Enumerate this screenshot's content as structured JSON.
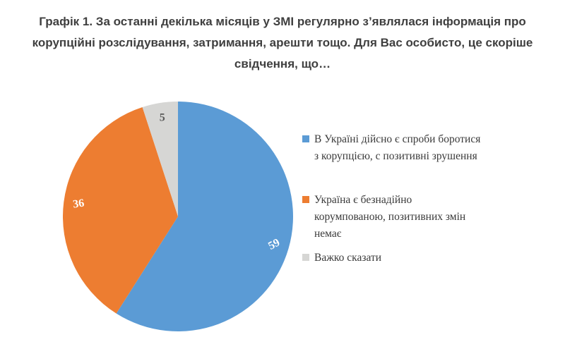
{
  "title": {
    "text": "Графік 1. За останні декілька місяців у ЗМІ регулярно з’являлася інформація про\nкорупційні розслідування, затримання, арешти тощо. Для Вас особисто, це скоріше\nсвідчення, що…",
    "color": "#3F3F3F"
  },
  "chart_data": {
    "type": "pie",
    "title": "Графік 1. За останні декілька місяців у ЗМІ регулярно з’являлася інформація про корупційні розслідування, затримання, арешти тощо. Для Вас особисто, це скоріше свідчення, що…",
    "categories": [
      "В Україні дійсно є спроби боротися з корупцією, с позитивні зрушення",
      "Україна є безнадійно корумпованою, позитивних змін немає",
      "Важко сказати"
    ],
    "values": [
      59,
      36,
      5
    ],
    "colors": [
      "#5B9BD5",
      "#ED7D31",
      "#D6D6D4"
    ],
    "data_labels": [
      "59",
      "36",
      "5"
    ],
    "data_label_colors": [
      "#FFFFFF",
      "#FFFFFF",
      "#595959"
    ],
    "start_angle_deg": 0,
    "direction": "clockwise",
    "legend_position": "right",
    "label_radius_fraction": 0.87,
    "label_rotations_deg": [
      -28,
      -8,
      0
    ]
  },
  "legend": {
    "text_color": "#3A3A3A",
    "items": [
      {
        "label": "В Україні дійсно є спроби боротися\nз корупцією, с позитивні зрушення"
      },
      {
        "label": "Україна є безнадійно\nкорумпованою, позитивних змін\nнемає"
      },
      {
        "label": "Важко сказати"
      }
    ]
  }
}
